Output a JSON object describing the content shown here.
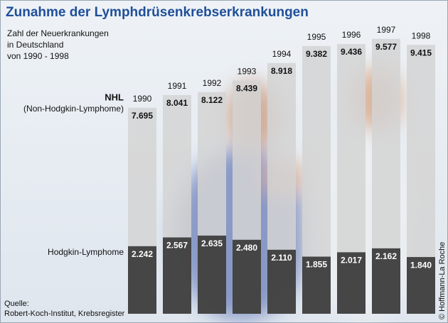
{
  "chart_data": {
    "type": "bar",
    "title": "Zunahme der Lymphdrüsenkrebserkrankungen",
    "subtitle": [
      "Zahl der Neuerkrankungen",
      "in Deutschland",
      "von 1990 - 1998"
    ],
    "categories": [
      "1990",
      "1991",
      "1992",
      "1993",
      "1994",
      "1995",
      "1996",
      "1997",
      "1998"
    ],
    "series": [
      {
        "name": "NHL",
        "note": "(Non-Hodgkin-Lymphome)",
        "color": "#d4d4d4",
        "values": [
          7695,
          8041,
          8122,
          8439,
          8918,
          9382,
          9436,
          9577,
          9415
        ],
        "value_labels": [
          "7.695",
          "8.041",
          "8.122",
          "8.439",
          "8.918",
          "9.382",
          "9.436",
          "9.577",
          "9.415"
        ]
      },
      {
        "name": "Hodgkin-Lymphome",
        "color": "#3a3a3a",
        "values": [
          2242,
          2567,
          2635,
          2480,
          2110,
          1855,
          2017,
          2162,
          1840
        ],
        "value_labels": [
          "2.242",
          "2.567",
          "2.635",
          "2.480",
          "2.110",
          "1.855",
          "2.017",
          "2.162",
          "1.840"
        ]
      }
    ],
    "source": [
      "Quelle:",
      "Robert-Koch-Institut, Krebsregister"
    ],
    "credit": "© Hoffmann-La Roche"
  }
}
